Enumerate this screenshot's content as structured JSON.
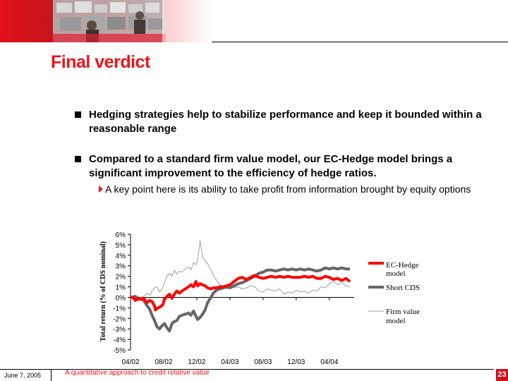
{
  "header": {
    "photo": "trading-floor-photo"
  },
  "title": "Final verdict",
  "bullets": [
    {
      "text": "Hedging strategies help to stabilize performance and keep it bounded within a reasonable range"
    },
    {
      "text": "Compared to a standard firm value model, our EC-Hedge model brings a significant improvement to the efficiency of hedge ratios."
    }
  ],
  "sub_bullet": {
    "text": "A key point here is its ability to take profit from information brought by equity options"
  },
  "chart_data": {
    "type": "line",
    "ylabel": "Total return (% of CDS nominal)",
    "xlabel": "",
    "title": "",
    "x_ticks": [
      "04/02",
      "08/02",
      "12/02",
      "04/03",
      "08/03",
      "12/03",
      "04/04"
    ],
    "y_ticks": [
      "6%",
      "5%",
      "4%",
      "3%",
      "2%",
      "1%",
      "0%",
      "-1%",
      "-2%",
      "-3%",
      "-4%",
      "-5%"
    ],
    "ylim": [
      -5,
      6
    ],
    "x_range": [
      "04/02",
      "07/04"
    ],
    "legend_position": "right",
    "series": [
      {
        "name": "EC-Hedge model",
        "color": "#ff0000",
        "points": [
          [
            0,
            0
          ],
          [
            0.3,
            0
          ],
          [
            0.6,
            -0.3
          ],
          [
            0.9,
            -0.1
          ],
          [
            1.2,
            -0.2
          ],
          [
            1.6,
            -0.1
          ],
          [
            2.0,
            -0.5
          ],
          [
            2.3,
            -0.3
          ],
          [
            2.6,
            -0.4
          ],
          [
            2.9,
            -0.8
          ],
          [
            3.0,
            -1.2
          ],
          [
            3.3,
            -1.0
          ],
          [
            3.6,
            -0.9
          ],
          [
            3.9,
            -0.7
          ],
          [
            4.1,
            -0.2
          ],
          [
            4.4,
            0.1
          ],
          [
            4.7,
            0.3
          ],
          [
            5.0,
            -0.1
          ],
          [
            5.3,
            0.3
          ],
          [
            5.6,
            0.6
          ],
          [
            5.9,
            0.4
          ],
          [
            6.2,
            0.6
          ],
          [
            6.6,
            0.8
          ],
          [
            7.0,
            1.0
          ],
          [
            7.3,
            1.2
          ],
          [
            7.6,
            1.0
          ],
          [
            7.9,
            1.5
          ],
          [
            8.1,
            1.1
          ],
          [
            8.4,
            1.3
          ],
          [
            8.7,
            1.2
          ],
          [
            9.0,
            1.1
          ],
          [
            9.3,
            0.9
          ],
          [
            9.7,
            0.8
          ],
          [
            10.0,
            0.9
          ],
          [
            10.4,
            0.9
          ],
          [
            10.8,
            1.0
          ],
          [
            11.2,
            1.0
          ],
          [
            11.6,
            1.1
          ],
          [
            12.0,
            1.2
          ],
          [
            12.5,
            1.5
          ],
          [
            13.0,
            1.8
          ],
          [
            13.5,
            1.9
          ],
          [
            14.0,
            1.7
          ],
          [
            14.5,
            1.9
          ],
          [
            15.0,
            2.1
          ],
          [
            15.5,
            1.9
          ],
          [
            16.0,
            1.8
          ],
          [
            16.5,
            1.9
          ],
          [
            17.0,
            2.0
          ],
          [
            17.5,
            1.9
          ],
          [
            18.0,
            2.0
          ],
          [
            18.5,
            1.9
          ],
          [
            19.0,
            2.0
          ],
          [
            19.5,
            1.9
          ],
          [
            20.0,
            1.9
          ],
          [
            20.5,
            1.9
          ],
          [
            21.0,
            2.0
          ],
          [
            21.5,
            1.9
          ],
          [
            22.0,
            2.0
          ],
          [
            22.5,
            1.8
          ],
          [
            23.0,
            1.8
          ],
          [
            23.5,
            2.0
          ],
          [
            24.0,
            1.9
          ],
          [
            24.5,
            1.7
          ],
          [
            25.0,
            1.8
          ],
          [
            25.5,
            1.6
          ],
          [
            26.0,
            1.8
          ],
          [
            26.5,
            1.5
          ]
        ]
      },
      {
        "name": "Short CDS",
        "color": "#666666",
        "points": [
          [
            0,
            0
          ],
          [
            0.3,
            0
          ],
          [
            0.6,
            0.1
          ],
          [
            0.9,
            -0.2
          ],
          [
            1.2,
            -0.1
          ],
          [
            1.6,
            -0.3
          ],
          [
            2.0,
            -0.8
          ],
          [
            2.3,
            -1.1
          ],
          [
            2.6,
            -1.7
          ],
          [
            2.9,
            -2.2
          ],
          [
            3.2,
            -2.8
          ],
          [
            3.5,
            -3.0
          ],
          [
            3.8,
            -2.7
          ],
          [
            4.1,
            -2.5
          ],
          [
            4.4,
            -2.9
          ],
          [
            4.7,
            -3.2
          ],
          [
            5.0,
            -2.5
          ],
          [
            5.3,
            -2.3
          ],
          [
            5.6,
            -2.2
          ],
          [
            5.9,
            -1.8
          ],
          [
            6.2,
            -1.7
          ],
          [
            6.6,
            -1.6
          ],
          [
            7.0,
            -1.5
          ],
          [
            7.3,
            -1.7
          ],
          [
            7.6,
            -1.3
          ],
          [
            7.9,
            -1.8
          ],
          [
            8.1,
            -2.1
          ],
          [
            8.4,
            -1.9
          ],
          [
            8.7,
            -1.6
          ],
          [
            9.0,
            -1.2
          ],
          [
            9.3,
            -0.5
          ],
          [
            9.7,
            0.0
          ],
          [
            10.0,
            0.4
          ],
          [
            10.4,
            0.7
          ],
          [
            10.8,
            0.8
          ],
          [
            11.2,
            0.9
          ],
          [
            11.6,
            1.0
          ],
          [
            12.0,
            0.9
          ],
          [
            12.5,
            1.1
          ],
          [
            13.0,
            1.3
          ],
          [
            13.5,
            1.4
          ],
          [
            14.0,
            1.6
          ],
          [
            14.5,
            1.8
          ],
          [
            15.0,
            2.0
          ],
          [
            15.5,
            2.3
          ],
          [
            16.0,
            2.4
          ],
          [
            16.5,
            2.6
          ],
          [
            17.0,
            2.6
          ],
          [
            17.5,
            2.5
          ],
          [
            18.0,
            2.6
          ],
          [
            18.5,
            2.7
          ],
          [
            19.0,
            2.6
          ],
          [
            19.5,
            2.7
          ],
          [
            20.0,
            2.6
          ],
          [
            20.5,
            2.7
          ],
          [
            21.0,
            2.6
          ],
          [
            21.5,
            2.7
          ],
          [
            22.0,
            2.6
          ],
          [
            22.5,
            2.5
          ],
          [
            23.0,
            2.6
          ],
          [
            23.5,
            2.8
          ],
          [
            24.0,
            2.7
          ],
          [
            24.5,
            2.8
          ],
          [
            25.0,
            2.7
          ],
          [
            25.5,
            2.8
          ],
          [
            26.0,
            2.7
          ],
          [
            26.5,
            2.7
          ]
        ]
      },
      {
        "name": "Firm value model",
        "color": "#a0a0a0",
        "points": [
          [
            0,
            0
          ],
          [
            0.3,
            0.2
          ],
          [
            0.6,
            -0.1
          ],
          [
            0.9,
            0.1
          ],
          [
            1.2,
            0.0
          ],
          [
            1.6,
            0.1
          ],
          [
            2.0,
            0.4
          ],
          [
            2.3,
            0.2
          ],
          [
            2.6,
            0.6
          ],
          [
            2.9,
            0.9
          ],
          [
            3.2,
            1.0
          ],
          [
            3.5,
            0.5
          ],
          [
            3.8,
            0.8
          ],
          [
            4.1,
            1.4
          ],
          [
            4.4,
            2.0
          ],
          [
            4.7,
            2.3
          ],
          [
            5.0,
            2.0
          ],
          [
            5.3,
            2.6
          ],
          [
            5.6,
            2.2
          ],
          [
            5.9,
            2.5
          ],
          [
            6.2,
            2.4
          ],
          [
            6.6,
            2.7
          ],
          [
            7.0,
            2.9
          ],
          [
            7.3,
            2.6
          ],
          [
            7.6,
            3.3
          ],
          [
            7.9,
            3.1
          ],
          [
            8.1,
            3.6
          ],
          [
            8.4,
            5.4
          ],
          [
            8.7,
            3.8
          ],
          [
            9.0,
            3.5
          ],
          [
            9.3,
            3.2
          ],
          [
            9.7,
            2.6
          ],
          [
            10.0,
            2.1
          ],
          [
            10.4,
            1.6
          ],
          [
            10.8,
            1.2
          ],
          [
            11.2,
            1.0
          ],
          [
            11.6,
            0.8
          ],
          [
            12.0,
            1.0
          ],
          [
            12.5,
            0.9
          ],
          [
            13.0,
            1.0
          ],
          [
            13.5,
            0.8
          ],
          [
            14.0,
            0.9
          ],
          [
            14.5,
            1.1
          ],
          [
            15.0,
            1.0
          ],
          [
            15.5,
            0.6
          ],
          [
            16.0,
            0.5
          ],
          [
            16.5,
            0.8
          ],
          [
            17.0,
            0.7
          ],
          [
            17.5,
            0.6
          ],
          [
            18.0,
            0.8
          ],
          [
            18.5,
            0.3
          ],
          [
            19.0,
            0.5
          ],
          [
            19.5,
            0.4
          ],
          [
            20.0,
            0.7
          ],
          [
            20.5,
            0.5
          ],
          [
            21.0,
            0.6
          ],
          [
            21.5,
            0.4
          ],
          [
            22.0,
            0.7
          ],
          [
            22.5,
            0.6
          ],
          [
            23.0,
            1.0
          ],
          [
            23.5,
            0.9
          ],
          [
            24.0,
            1.3
          ],
          [
            24.5,
            1.5
          ],
          [
            25.0,
            1.2
          ],
          [
            25.5,
            1.4
          ],
          [
            26.0,
            1.1
          ],
          [
            26.5,
            1.0
          ]
        ]
      }
    ]
  },
  "legend": {
    "ec_hedge": [
      "EC-Hedge",
      "model"
    ],
    "short_cds": "Short CDS",
    "firm_value": [
      "Firm value",
      "model"
    ]
  },
  "footer": {
    "date": "June 7, 2005",
    "title": "A quantitative approach to credit relative value",
    "page": "23"
  }
}
